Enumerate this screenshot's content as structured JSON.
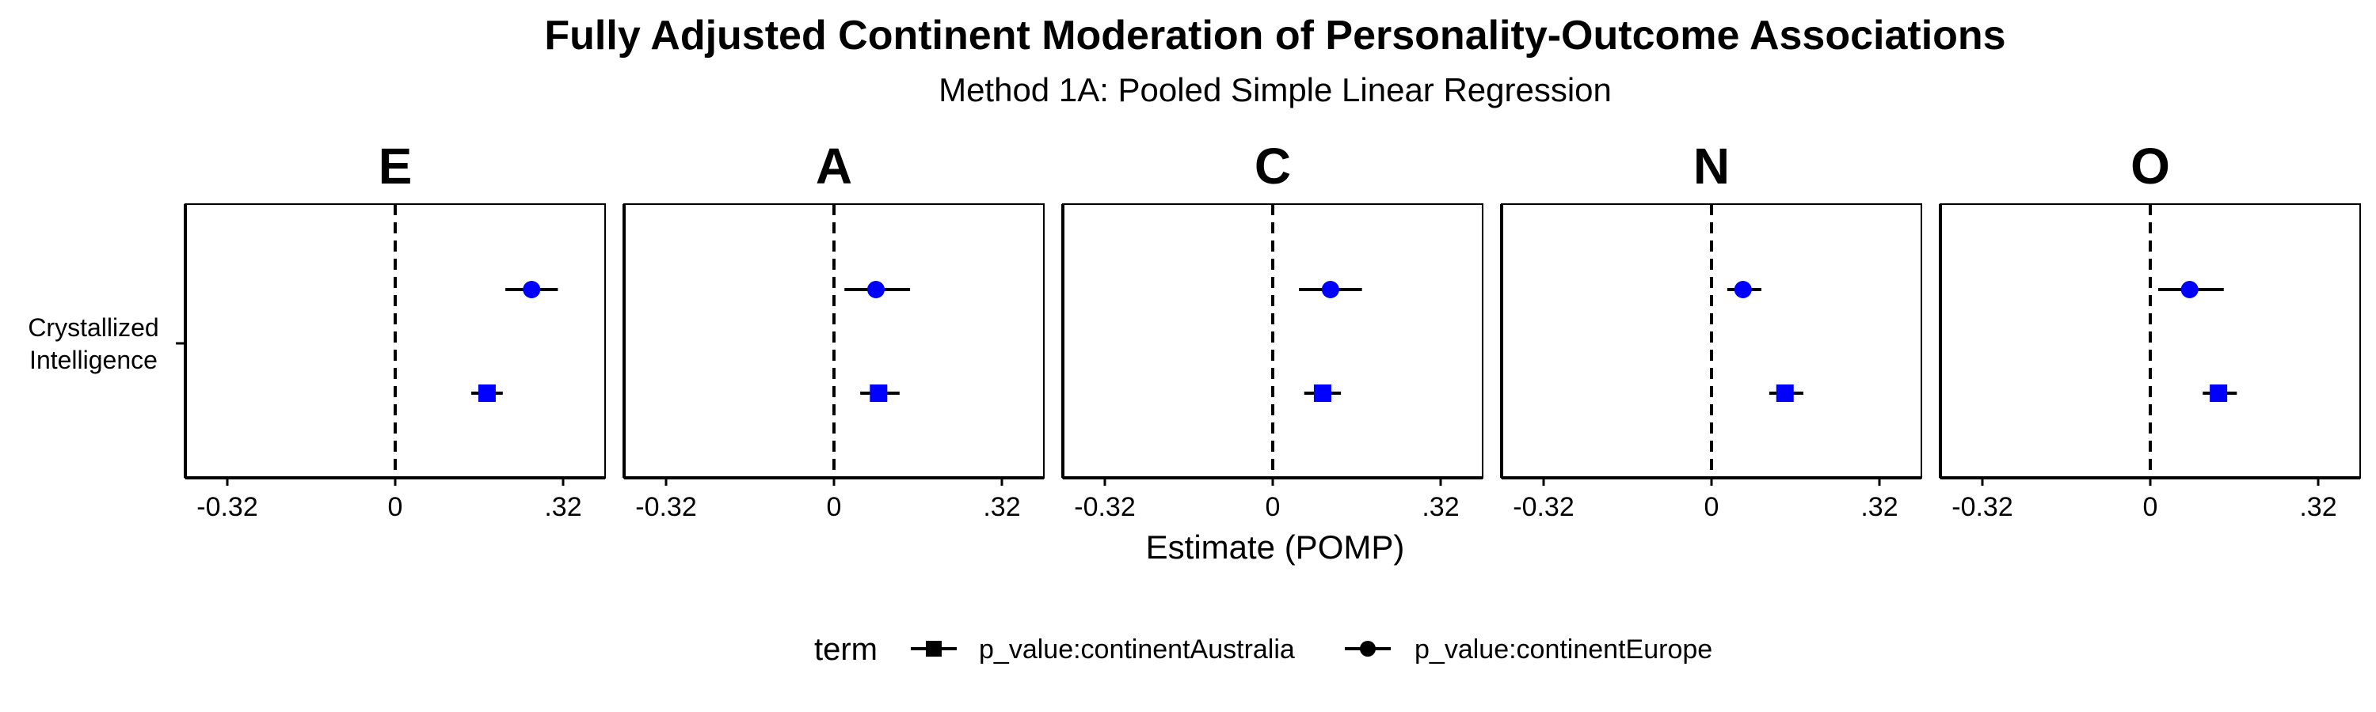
{
  "chart_data": {
    "type": "scatter",
    "subtype": "forest-plot",
    "title": "Fully Adjusted Continent Moderation of Personality-Outcome Associations",
    "subtitle": "Method 1A: Pooled Simple Linear Regression",
    "xlabel": "Estimate (POMP)",
    "ylabel": "",
    "xlim": [
      -0.4,
      0.4
    ],
    "xticks": [
      -0.32,
      0,
      0.32
    ],
    "xtick_labels": [
      "-0.32",
      "0",
      ".32"
    ],
    "reference_line": 0,
    "y_category": "Crystallized Intelligence",
    "y_category_lines": [
      "Crystallized",
      "Intelligence"
    ],
    "facets": [
      "E",
      "A",
      "C",
      "N",
      "O"
    ],
    "grid": false,
    "legend": {
      "title": "term",
      "position": "bottom",
      "entries": [
        {
          "label": "p_value:continentAustralia",
          "shape": "square"
        },
        {
          "label": "p_value:continentEurope",
          "shape": "circle"
        }
      ]
    },
    "point_color": "#0000ff",
    "series": [
      {
        "label": "p_value:continentEurope",
        "shape": "circle",
        "facets": {
          "E": {
            "estimate": 0.26,
            "lower": 0.21,
            "upper": 0.31
          },
          "A": {
            "estimate": 0.08,
            "lower": 0.02,
            "upper": 0.145
          },
          "C": {
            "estimate": 0.11,
            "lower": 0.05,
            "upper": 0.17
          },
          "N": {
            "estimate": 0.06,
            "lower": 0.03,
            "upper": 0.095
          },
          "O": {
            "estimate": 0.075,
            "lower": 0.015,
            "upper": 0.14
          }
        }
      },
      {
        "label": "p_value:continentAustralia",
        "shape": "square",
        "facets": {
          "E": {
            "estimate": 0.175,
            "lower": 0.145,
            "upper": 0.205
          },
          "A": {
            "estimate": 0.085,
            "lower": 0.05,
            "upper": 0.125
          },
          "C": {
            "estimate": 0.095,
            "lower": 0.06,
            "upper": 0.13
          },
          "N": {
            "estimate": 0.14,
            "lower": 0.11,
            "upper": 0.175
          },
          "O": {
            "estimate": 0.13,
            "lower": 0.1,
            "upper": 0.165
          }
        }
      }
    ]
  }
}
